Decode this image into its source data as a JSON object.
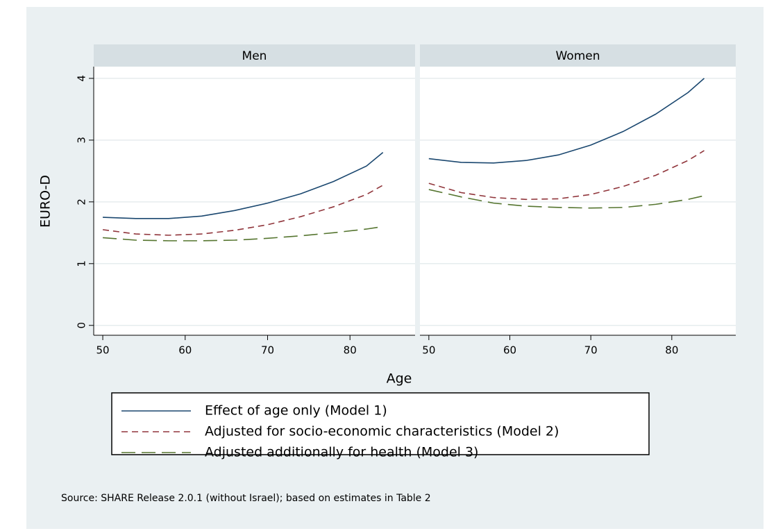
{
  "figure": {
    "xlabel": "Age",
    "note": "Source: SHARE Release 2.0.1 (without Israel); based on estimates in Table 2"
  },
  "chart_data": [
    {
      "type": "line",
      "title": "Men",
      "ylabel": "EURO-D",
      "x": [
        50,
        54,
        58,
        62,
        66,
        70,
        74,
        78,
        82,
        84
      ],
      "xlim": [
        48.9,
        87.9
      ],
      "ylim": [
        -0.16,
        4.19
      ],
      "xticks": [
        50,
        60,
        70,
        80
      ],
      "yticks": [
        0,
        1,
        2,
        3,
        4
      ],
      "grid": true,
      "series": [
        {
          "name": "Effect of age only (Model 1)",
          "color": "#1a476f",
          "style": "solid",
          "values": [
            1.75,
            1.73,
            1.73,
            1.77,
            1.86,
            1.98,
            2.13,
            2.33,
            2.58,
            2.8
          ]
        },
        {
          "name": "Adjusted for socio-economic characteristics (Model 2)",
          "color": "#90353b",
          "style": "dash",
          "values": [
            1.55,
            1.48,
            1.46,
            1.48,
            1.54,
            1.63,
            1.76,
            1.92,
            2.12,
            2.27
          ]
        },
        {
          "name": "Adjusted additionally for health (Model 3)",
          "color": "#55752f",
          "style": "longdash",
          "values": [
            1.42,
            1.38,
            1.37,
            1.37,
            1.38,
            1.41,
            1.45,
            1.5,
            1.56,
            1.6
          ]
        }
      ]
    },
    {
      "type": "line",
      "title": "Women",
      "x": [
        50,
        54,
        58,
        62,
        66,
        70,
        74,
        78,
        82,
        84
      ],
      "xlim": [
        48.9,
        87.9
      ],
      "ylim": [
        -0.16,
        4.19
      ],
      "xticks": [
        50,
        60,
        70,
        80
      ],
      "yticks": [
        0,
        1,
        2,
        3,
        4
      ],
      "grid": true,
      "series": [
        {
          "color": "#1a476f",
          "style": "solid",
          "values": [
            2.7,
            2.64,
            2.63,
            2.67,
            2.76,
            2.92,
            3.14,
            3.42,
            3.77,
            4.0
          ]
        },
        {
          "color": "#90353b",
          "style": "dash",
          "values": [
            2.3,
            2.15,
            2.07,
            2.04,
            2.05,
            2.12,
            2.25,
            2.43,
            2.67,
            2.83
          ]
        },
        {
          "color": "#55752f",
          "style": "longdash",
          "values": [
            2.2,
            2.08,
            1.98,
            1.93,
            1.91,
            1.9,
            1.91,
            1.96,
            2.04,
            2.1
          ]
        }
      ]
    }
  ]
}
